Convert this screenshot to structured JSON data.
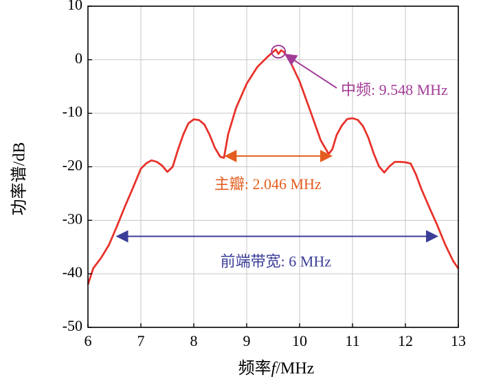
{
  "chart_data": {
    "type": "line",
    "xlabel_prefix": "频率",
    "xlabel_var": "f",
    "xlabel_suffix": "/MHz",
    "ylabel": "功率谱/dB",
    "xlim": [
      6,
      13
    ],
    "ylim": [
      -50,
      10
    ],
    "x_ticks": [
      "6",
      "7",
      "8",
      "9",
      "10",
      "11",
      "12",
      "13"
    ],
    "y_ticks": [
      "10",
      "0",
      "-10",
      "-20",
      "-30",
      "-40",
      "-50"
    ],
    "grid": true,
    "series": [
      {
        "color": "#e8322a",
        "x": [
          6.0,
          6.1,
          6.25,
          6.4,
          6.55,
          6.7,
          6.85,
          7.0,
          7.1,
          7.2,
          7.3,
          7.4,
          7.5,
          7.6,
          7.7,
          7.8,
          7.9,
          8.0,
          8.1,
          8.2,
          8.3,
          8.4,
          8.5,
          8.57,
          8.65,
          8.8,
          9.0,
          9.2,
          9.4,
          9.5,
          9.55,
          9.6,
          9.65,
          9.7,
          9.8,
          10.0,
          10.2,
          10.4,
          10.55,
          10.62,
          10.7,
          10.8,
          10.9,
          11.0,
          11.1,
          11.2,
          11.3,
          11.4,
          11.5,
          11.6,
          11.7,
          11.8,
          11.9,
          12.0,
          12.1,
          12.2,
          12.3,
          12.45,
          12.6,
          12.75,
          12.9,
          13.0
        ],
        "y": [
          -42.0,
          -39.0,
          -37.0,
          -34.5,
          -31.0,
          -27.5,
          -24.0,
          -20.5,
          -19.5,
          -18.8,
          -19.0,
          -19.7,
          -21.0,
          -20.0,
          -17.0,
          -14.0,
          -12.0,
          -11.0,
          -11.2,
          -12.0,
          -14.0,
          -16.5,
          -18.0,
          -18.2,
          -14.0,
          -9.0,
          -4.5,
          -1.5,
          0.5,
          1.5,
          2.0,
          1.2,
          1.8,
          1.5,
          0.0,
          -4.0,
          -9.5,
          -15.0,
          -17.5,
          -16.8,
          -14.0,
          -12.2,
          -11.2,
          -10.8,
          -11.3,
          -12.5,
          -14.5,
          -17.5,
          -20.0,
          -21.0,
          -20.0,
          -19.2,
          -19.0,
          -19.1,
          -19.5,
          -21.5,
          -24.0,
          -27.5,
          -31.0,
          -34.5,
          -37.5,
          -39.0
        ]
      }
    ],
    "annotations": [
      {
        "label": "中频: 9.548 MHz",
        "color": "#a23c96",
        "x": 9.6,
        "y": 1.5,
        "text_x": 10.25,
        "text_y": -5.5
      },
      {
        "label": "主瓣: 2.046 MHz",
        "color": "#e45d1e",
        "x_from": 8.6,
        "x_to": 10.6,
        "y": -18,
        "text_x": 9.4,
        "text_y": -23.5
      },
      {
        "label": "前端带宽: 6 MHz",
        "color": "#3b3e99",
        "x_from": 6.55,
        "x_to": 12.6,
        "y": -33,
        "text_x": 9.55,
        "text_y": -38
      }
    ]
  }
}
